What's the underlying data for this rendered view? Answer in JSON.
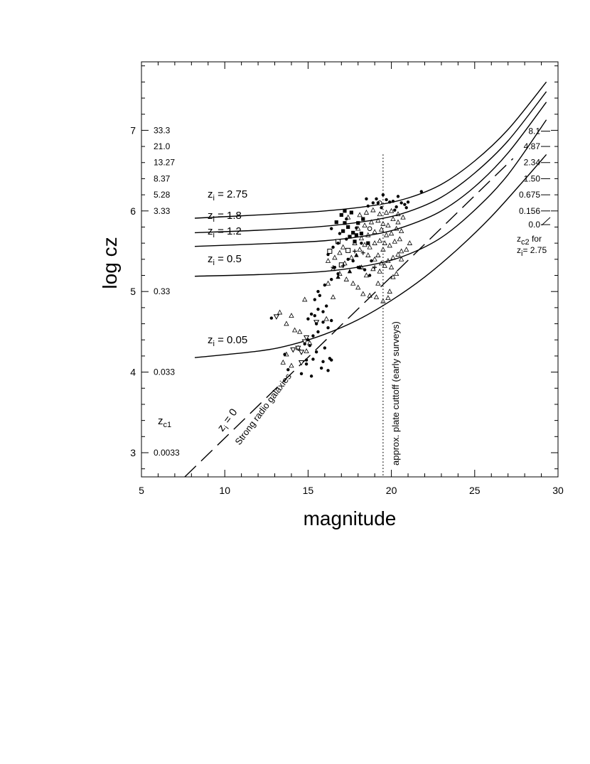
{
  "chart_data": {
    "type": "scatter",
    "title": "",
    "xlabel": "magnitude",
    "ylabel": "log cz",
    "xlim": [
      5,
      30
    ],
    "ylim": [
      2.7,
      7.85
    ],
    "x_ticks": [
      5,
      10,
      15,
      20,
      25,
      30
    ],
    "y_ticks": [
      3,
      4,
      5,
      6,
      7
    ],
    "grid": false,
    "left_zc1_labels": [
      {
        "y": 7.0,
        "text": "33.3"
      },
      {
        "y": 6.8,
        "text": "21.0"
      },
      {
        "y": 6.6,
        "text": "13.27"
      },
      {
        "y": 6.4,
        "text": "8.37"
      },
      {
        "y": 6.2,
        "text": "5.28"
      },
      {
        "y": 6.0,
        "text": "3.33"
      },
      {
        "y": 5.0,
        "text": "0.33"
      },
      {
        "y": 4.0,
        "text": "0.033"
      },
      {
        "y": 3.0,
        "text": "0.0033"
      }
    ],
    "left_zc1_title": {
      "main": "z",
      "sub": "c1"
    },
    "right_zc2_labels": [
      {
        "y": 6.99,
        "text": "8.1"
      },
      {
        "y": 6.8,
        "text": "4.87"
      },
      {
        "y": 6.6,
        "text": "2.34"
      },
      {
        "y": 6.4,
        "text": "1.50"
      },
      {
        "y": 6.2,
        "text": "0.675"
      },
      {
        "y": 6.0,
        "text": "0.156"
      },
      {
        "y": 5.83,
        "text": "0.0"
      }
    ],
    "right_zc2_title": {
      "main": "z",
      "sub": "c2",
      "line1_rest": " for",
      "line2_main": "z",
      "line2_sub": "i",
      "line2_rest": "= 2.75"
    },
    "curves": [
      {
        "name_main": "z",
        "name_sub": "i",
        "name_rest": " = 2.75",
        "x": [
          8.2,
          12,
          16,
          19,
          21,
          23,
          25,
          27,
          29.3
        ],
        "y": [
          5.91,
          5.95,
          6.0,
          6.07,
          6.16,
          6.33,
          6.62,
          7.01,
          7.6
        ]
      },
      {
        "name_main": "z",
        "name_sub": "i",
        "name_rest": " = 1.8",
        "x": [
          8.2,
          12,
          16,
          19,
          21,
          23,
          25,
          27,
          29.3
        ],
        "y": [
          5.73,
          5.76,
          5.81,
          5.89,
          5.99,
          6.17,
          6.47,
          6.87,
          7.48
        ]
      },
      {
        "name_main": "z",
        "name_sub": "i",
        "name_rest": " = 1.2",
        "x": [
          8.2,
          12,
          16,
          19,
          21,
          23,
          25,
          27,
          29.3
        ],
        "y": [
          5.56,
          5.59,
          5.63,
          5.71,
          5.82,
          6.0,
          6.3,
          6.72,
          7.35
        ]
      },
      {
        "name_main": "z",
        "name_sub": "i",
        "name_rest": " = 0.5",
        "x": [
          8.2,
          12,
          16,
          19,
          21,
          23,
          25,
          27,
          29.3
        ],
        "y": [
          5.19,
          5.21,
          5.25,
          5.34,
          5.46,
          5.67,
          6.01,
          6.45,
          7.13
        ]
      },
      {
        "name_main": "z",
        "name_sub": "i",
        "name_rest": " = 0.05",
        "x": [
          8.2,
          12,
          14,
          16,
          18,
          20,
          22,
          24,
          26,
          28,
          29.3
        ],
        "y": [
          4.18,
          4.26,
          4.34,
          4.47,
          4.65,
          4.89,
          5.18,
          5.53,
          5.93,
          6.39,
          6.7
        ]
      }
    ],
    "zi0_line": {
      "name_main": "z",
      "name_sub": "i",
      "name_rest": " = 0",
      "x": [
        7.6,
        27.3
      ],
      "y": [
        2.7,
        6.65
      ]
    },
    "strong_radio_label": "Strong radio galaxies",
    "plate_cutoff": {
      "x": 19.5,
      "y_top": 6.7,
      "label": "approx. plate cuttoff (early surveys)"
    },
    "series": [
      {
        "marker": "filled-circle",
        "points": [
          [
            12.8,
            4.67
          ],
          [
            13.6,
            4.22
          ],
          [
            13.8,
            4.03
          ],
          [
            14.6,
            3.98
          ],
          [
            14.9,
            4.1
          ],
          [
            15.2,
            3.95
          ],
          [
            15.5,
            4.25
          ],
          [
            15.8,
            4.05
          ],
          [
            15.9,
            4.13
          ],
          [
            16.3,
            4.17
          ],
          [
            16.4,
            4.15
          ],
          [
            16.2,
            4.02
          ],
          [
            14.8,
            4.35
          ],
          [
            15.0,
            4.4
          ],
          [
            15.3,
            4.45
          ],
          [
            15.6,
            4.5
          ],
          [
            15.9,
            4.62
          ],
          [
            16.2,
            4.55
          ],
          [
            15.0,
            4.66
          ],
          [
            15.2,
            4.72
          ],
          [
            15.4,
            4.7
          ],
          [
            15.6,
            4.78
          ],
          [
            15.9,
            4.75
          ],
          [
            16.1,
            4.82
          ],
          [
            16.4,
            4.64
          ],
          [
            15.4,
            4.9
          ],
          [
            15.7,
            4.95
          ],
          [
            15.5,
            4.6
          ],
          [
            15.6,
            5.0
          ],
          [
            16.0,
            5.08
          ],
          [
            16.4,
            5.15
          ],
          [
            16.6,
            5.3
          ],
          [
            16.8,
            5.22
          ],
          [
            16.2,
            5.46
          ],
          [
            16.5,
            5.55
          ],
          [
            16.8,
            5.6
          ],
          [
            16.9,
            5.72
          ],
          [
            17.3,
            5.65
          ],
          [
            17.4,
            5.4
          ],
          [
            17.7,
            5.38
          ],
          [
            18.0,
            5.3
          ],
          [
            18.4,
            5.27
          ],
          [
            18.7,
            5.2
          ],
          [
            18.8,
            5.38
          ],
          [
            17.3,
            5.9
          ],
          [
            16.4,
            5.78
          ],
          [
            17.9,
            5.79
          ],
          [
            18.2,
            5.6
          ],
          [
            18.6,
            6.06
          ],
          [
            18.9,
            6.1
          ],
          [
            19.2,
            6.1
          ],
          [
            19.4,
            6.04
          ],
          [
            19.5,
            6.2
          ],
          [
            19.7,
            6.14
          ],
          [
            19.9,
            6.11
          ],
          [
            20.1,
            6.12
          ],
          [
            20.3,
            6.05
          ],
          [
            20.4,
            6.18
          ],
          [
            20.6,
            6.1
          ],
          [
            20.8,
            6.08
          ],
          [
            20.9,
            6.04
          ],
          [
            20.2,
            6.01
          ],
          [
            21.0,
            6.11
          ],
          [
            19.1,
            6.15
          ],
          [
            18.5,
            6.15
          ],
          [
            21.8,
            6.24
          ],
          [
            15.1,
            4.33
          ],
          [
            14.9,
            4.15
          ],
          [
            15.3,
            4.16
          ],
          [
            16.0,
            4.3
          ]
        ]
      },
      {
        "marker": "filled-square",
        "points": [
          [
            17.1,
            5.75
          ],
          [
            17.2,
            5.85
          ],
          [
            17.4,
            5.8
          ],
          [
            17.5,
            5.68
          ],
          [
            17.7,
            5.73
          ],
          [
            17.8,
            5.62
          ],
          [
            17.9,
            5.7
          ],
          [
            18.0,
            5.85
          ],
          [
            18.2,
            5.72
          ],
          [
            18.3,
            5.9
          ],
          [
            17.2,
            6.0
          ],
          [
            16.7,
            5.86
          ],
          [
            17.0,
            5.95
          ],
          [
            17.6,
            5.98
          ],
          [
            18.6,
            5.6
          ]
        ]
      },
      {
        "marker": "filled-triangle",
        "points": [
          [
            17.5,
            5.25
          ],
          [
            16.8,
            5.18
          ],
          [
            17.9,
            5.45
          ],
          [
            18.1,
            5.3
          ]
        ]
      },
      {
        "marker": "open-triangle",
        "points": [
          [
            13.3,
            4.74
          ],
          [
            13.7,
            4.6
          ],
          [
            14.2,
            4.52
          ],
          [
            14.5,
            4.5
          ],
          [
            14.0,
            4.7
          ],
          [
            14.8,
            4.9
          ],
          [
            13.7,
            4.22
          ],
          [
            14.0,
            4.08
          ],
          [
            13.5,
            4.12
          ],
          [
            14.4,
            4.3
          ],
          [
            14.9,
            4.26
          ],
          [
            15.1,
            4.36
          ],
          [
            16.1,
            4.66
          ],
          [
            16.5,
            4.93
          ],
          [
            16.2,
            5.1
          ],
          [
            16.6,
            5.42
          ],
          [
            16.9,
            5.22
          ],
          [
            17.3,
            5.15
          ],
          [
            17.7,
            5.1
          ],
          [
            18.0,
            5.05
          ],
          [
            18.3,
            4.97
          ],
          [
            18.7,
            4.95
          ],
          [
            19.1,
            4.93
          ],
          [
            19.5,
            4.88
          ],
          [
            19.8,
            4.92
          ],
          [
            19.9,
            5.0
          ],
          [
            20.1,
            5.18
          ],
          [
            20.3,
            5.22
          ],
          [
            19.2,
            5.1
          ],
          [
            18.5,
            5.2
          ],
          [
            18.9,
            5.28
          ],
          [
            19.3,
            5.25
          ],
          [
            19.6,
            5.32
          ],
          [
            19.8,
            5.38
          ],
          [
            20.1,
            5.42
          ],
          [
            20.4,
            5.46
          ],
          [
            20.6,
            5.5
          ],
          [
            20.9,
            5.52
          ],
          [
            17.2,
            5.35
          ],
          [
            17.6,
            5.42
          ],
          [
            18.1,
            5.52
          ],
          [
            18.4,
            5.58
          ],
          [
            18.7,
            5.55
          ],
          [
            19.0,
            5.6
          ],
          [
            19.3,
            5.63
          ],
          [
            19.6,
            5.6
          ],
          [
            19.9,
            5.57
          ],
          [
            20.2,
            5.62
          ],
          [
            20.5,
            5.65
          ],
          [
            17.8,
            5.6
          ],
          [
            18.2,
            5.66
          ],
          [
            18.6,
            5.7
          ],
          [
            19.0,
            5.74
          ],
          [
            19.4,
            5.77
          ],
          [
            19.7,
            5.7
          ],
          [
            20.0,
            5.72
          ],
          [
            20.3,
            5.78
          ],
          [
            20.6,
            5.75
          ],
          [
            18.0,
            5.78
          ],
          [
            18.4,
            5.82
          ],
          [
            18.8,
            5.86
          ],
          [
            19.2,
            5.88
          ],
          [
            19.5,
            5.84
          ],
          [
            19.8,
            5.82
          ],
          [
            20.1,
            5.9
          ],
          [
            20.4,
            5.86
          ],
          [
            17.4,
            5.92
          ],
          [
            18.1,
            5.95
          ],
          [
            18.5,
            5.98
          ],
          [
            18.9,
            6.01
          ],
          [
            19.3,
            5.96
          ],
          [
            19.7,
            5.98
          ],
          [
            20.0,
            6.0
          ],
          [
            20.4,
            5.96
          ],
          [
            20.7,
            5.92
          ],
          [
            16.5,
            5.28
          ],
          [
            16.2,
            5.38
          ],
          [
            16.9,
            5.48
          ],
          [
            17.1,
            5.55
          ],
          [
            19.2,
            5.45
          ],
          [
            19.5,
            5.52
          ],
          [
            19.0,
            5.4
          ],
          [
            18.2,
            5.3
          ],
          [
            18.6,
            5.45
          ],
          [
            19.4,
            5.35
          ],
          [
            20.0,
            5.3
          ],
          [
            20.6,
            5.4
          ],
          [
            21.1,
            5.6
          ]
        ]
      },
      {
        "marker": "open-inverted-triangle",
        "points": [
          [
            13.1,
            4.69
          ],
          [
            14.4,
            4.3
          ],
          [
            14.6,
            4.12
          ],
          [
            14.8,
            4.38
          ],
          [
            15.5,
            4.62
          ],
          [
            14.1,
            4.28
          ],
          [
            14.6,
            4.25
          ],
          [
            14.9,
            4.43
          ]
        ]
      },
      {
        "marker": "open-square",
        "points": [
          [
            16.3,
            5.5
          ],
          [
            16.8,
            5.62
          ],
          [
            17.4,
            5.51
          ],
          [
            17.0,
            5.33
          ]
        ]
      },
      {
        "marker": "open-circle",
        "points": [
          [
            19.3,
            6.1
          ],
          [
            18.7,
            5.78
          ]
        ]
      },
      {
        "marker": "cross",
        "points": [
          [
            16.5,
            5.3
          ],
          [
            17.1,
            5.32
          ],
          [
            18.3,
            5.48
          ],
          [
            17.8,
            5.5
          ],
          [
            19.0,
            5.3
          ]
        ]
      }
    ]
  }
}
